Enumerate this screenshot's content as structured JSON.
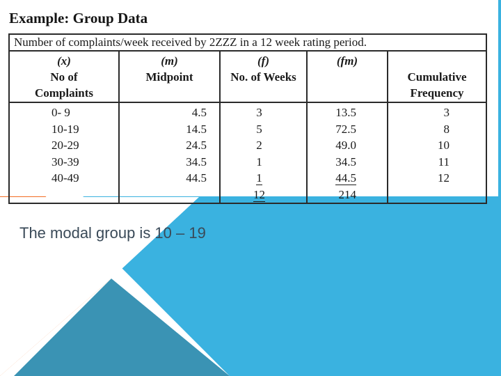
{
  "slide": {
    "title": "Example: Group Data",
    "table_caption": "Number of complaints/week received by 2ZZZ in a 12 week rating period.",
    "headers": [
      {
        "var": "(x)",
        "label1": "No of",
        "label2": "Complaints"
      },
      {
        "var": "(m)",
        "label1": "Midpoint",
        "label2": ""
      },
      {
        "var": "(f)",
        "label1": "No. of Weeks",
        "label2": ""
      },
      {
        "var": "(fm)",
        "label1": "",
        "label2": ""
      },
      {
        "var": "",
        "label1": "Cumulative",
        "label2": "Frequency"
      }
    ],
    "columns": {
      "x": [
        "0- 9",
        "10-19",
        "20-29",
        "30-39",
        "40-49"
      ],
      "m": [
        "4.5",
        "14.5",
        "24.5",
        "34.5",
        "44.5"
      ],
      "f": [
        "3",
        "5",
        "2",
        "1",
        "1",
        "12"
      ],
      "fm": [
        "13.5",
        "72.5",
        "49.0",
        "34.5",
        "44.5",
        "214"
      ],
      "c": [
        "3",
        "8",
        "10",
        "11",
        "12"
      ]
    },
    "modal_statement": "The modal group is 10 – 19"
  }
}
